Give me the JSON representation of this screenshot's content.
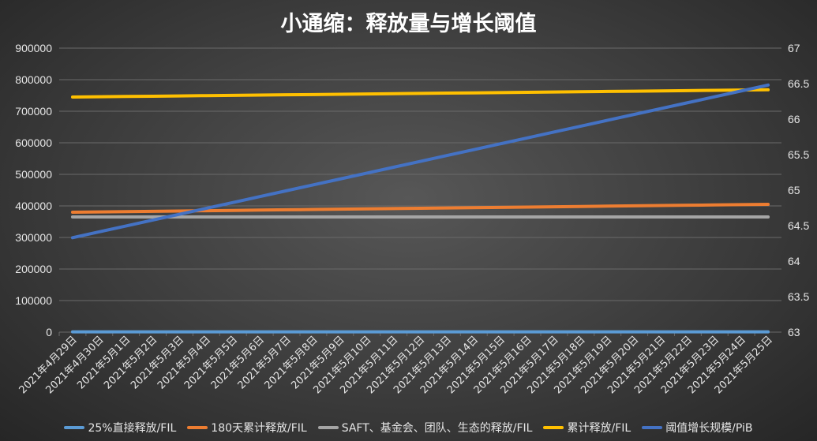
{
  "chart_data": {
    "type": "line",
    "title": "小通缩：释放量与增长阈值",
    "x": [
      "2021年4月29日",
      "2021年4月30日",
      "2021年5月1日",
      "2021年5月2日",
      "2021年5月3日",
      "2021年5月4日",
      "2021年5月5日",
      "2021年5月6日",
      "2021年5月7日",
      "2021年5月8日",
      "2021年5月9日",
      "2021年5月10日",
      "2021年5月11日",
      "2021年5月12日",
      "2021年5月13日",
      "2021年5月14日",
      "2021年5月15日",
      "2021年5月16日",
      "2021年5月17日",
      "2021年5月18日",
      "2021年5月19日",
      "2021年5月20日",
      "2021年5月21日",
      "2021年5月22日",
      "2021年5月23日",
      "2021年5月24日",
      "2021年5月25日"
    ],
    "y_left": {
      "ylim": [
        0,
        900000
      ],
      "ticks": [
        "0",
        "100000",
        "200000",
        "300000",
        "400000",
        "500000",
        "600000",
        "700000",
        "800000",
        "900000"
      ]
    },
    "y_right": {
      "ylim": [
        63,
        67
      ],
      "ticks": [
        "63",
        "63.5",
        "64",
        "64.5",
        "65",
        "65.5",
        "66",
        "66.5",
        "67"
      ]
    },
    "grid": true,
    "legend_position": "bottom",
    "series": [
      {
        "name": "25%直接释放/FIL",
        "color": "#5b9bd5",
        "axis": "left",
        "start": 1000,
        "end": 1000
      },
      {
        "name": "180天累计释放/FIL",
        "color": "#ed7d31",
        "axis": "left",
        "start": 380000,
        "end": 405000
      },
      {
        "name": "SAFT、基金会、团队、生态的释放/FIL",
        "color": "#a5a5a5",
        "axis": "left",
        "start": 365000,
        "end": 365000
      },
      {
        "name": "累计释放/FIL",
        "color": "#ffc000",
        "axis": "left",
        "start": 745000,
        "end": 768000
      },
      {
        "name": "阈值增长规模/PiB",
        "color": "#4472c4",
        "axis": "right",
        "start": 64.33,
        "end": 66.48
      }
    ]
  }
}
